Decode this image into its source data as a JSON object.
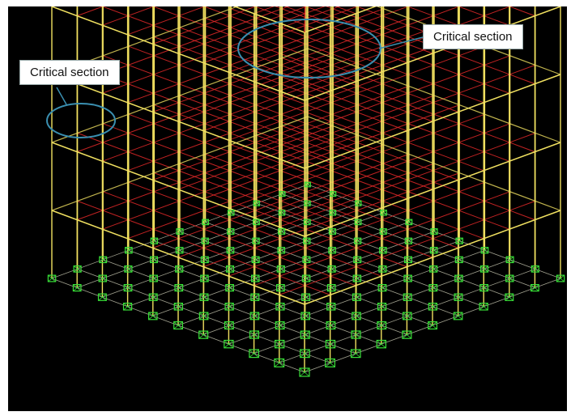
{
  "callouts": {
    "left": "Critical section",
    "right": "Critical section"
  },
  "colors": {
    "background": "#000000",
    "columns": "#f0e060",
    "beams": "#e02828",
    "supports": "#38e038",
    "base_grid": "#d8d8c0",
    "highlight_ellipse": "#3a8fb0"
  },
  "model": {
    "grid_x_bays": 10,
    "grid_y_bays": 10,
    "stories": 5,
    "support_icon": "fixed-support-icon"
  }
}
